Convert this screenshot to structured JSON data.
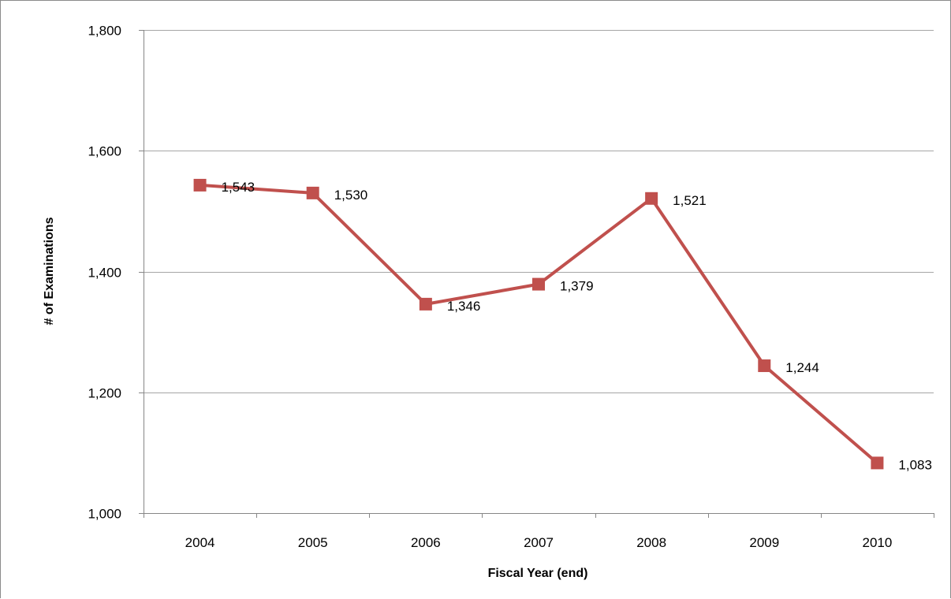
{
  "chart_data": {
    "type": "line",
    "title": "",
    "xlabel": "Fiscal Year (end)",
    "ylabel": "# of Examinations",
    "categories": [
      "2004",
      "2005",
      "2006",
      "2007",
      "2008",
      "2009",
      "2010"
    ],
    "series": [
      {
        "values": [
          1543,
          1530,
          1346,
          1379,
          1521,
          1244,
          1083
        ],
        "data_labels": [
          "1,543",
          "1,530",
          "1,346",
          "1,379",
          "1,521",
          "1,244",
          "1,083"
        ],
        "color": "#c0504d",
        "marker": "square"
      }
    ],
    "ylim": [
      1000,
      1800
    ],
    "yticks": [
      1000,
      1200,
      1400,
      1600,
      1800
    ],
    "ytick_labels": [
      "1,000",
      "1,200",
      "1,400",
      "1,600",
      "1,800"
    ],
    "grid": "horizontal",
    "gridline_color": "#a6a6a6",
    "legend": "none"
  }
}
